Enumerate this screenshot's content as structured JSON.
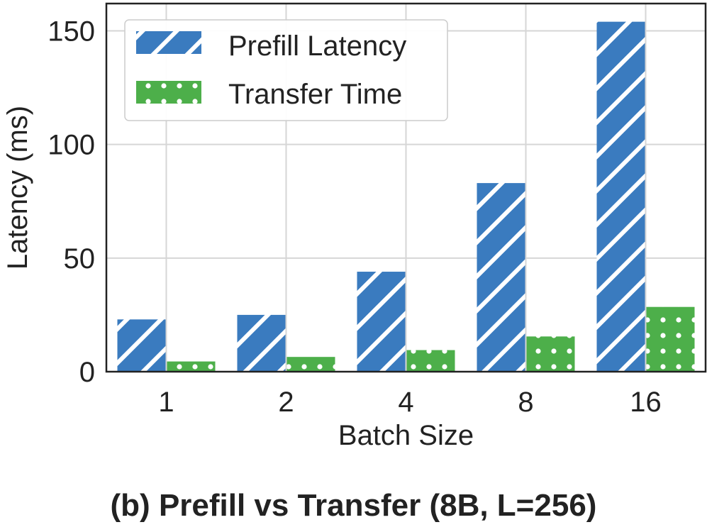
{
  "caption": "(b) Prefill vs Transfer (8B, L=256)",
  "chart_data": {
    "type": "bar",
    "categories": [
      "1",
      "2",
      "4",
      "8",
      "16"
    ],
    "series": [
      {
        "name": "Prefill Latency",
        "values": [
          23,
          25,
          44,
          83,
          154
        ],
        "color": "#3a7bbf",
        "pattern": "diagonal-hatch"
      },
      {
        "name": "Transfer Time",
        "values": [
          4.5,
          6.5,
          9.5,
          15.5,
          28.5
        ],
        "color": "#4daf4a",
        "pattern": "dots"
      }
    ],
    "xlabel": "Batch Size",
    "ylabel": "Latency (ms)",
    "ylim": [
      0,
      162
    ],
    "yticks": [
      "0",
      "50",
      "100",
      "150"
    ],
    "grid": true,
    "legend_position": "top-left"
  }
}
